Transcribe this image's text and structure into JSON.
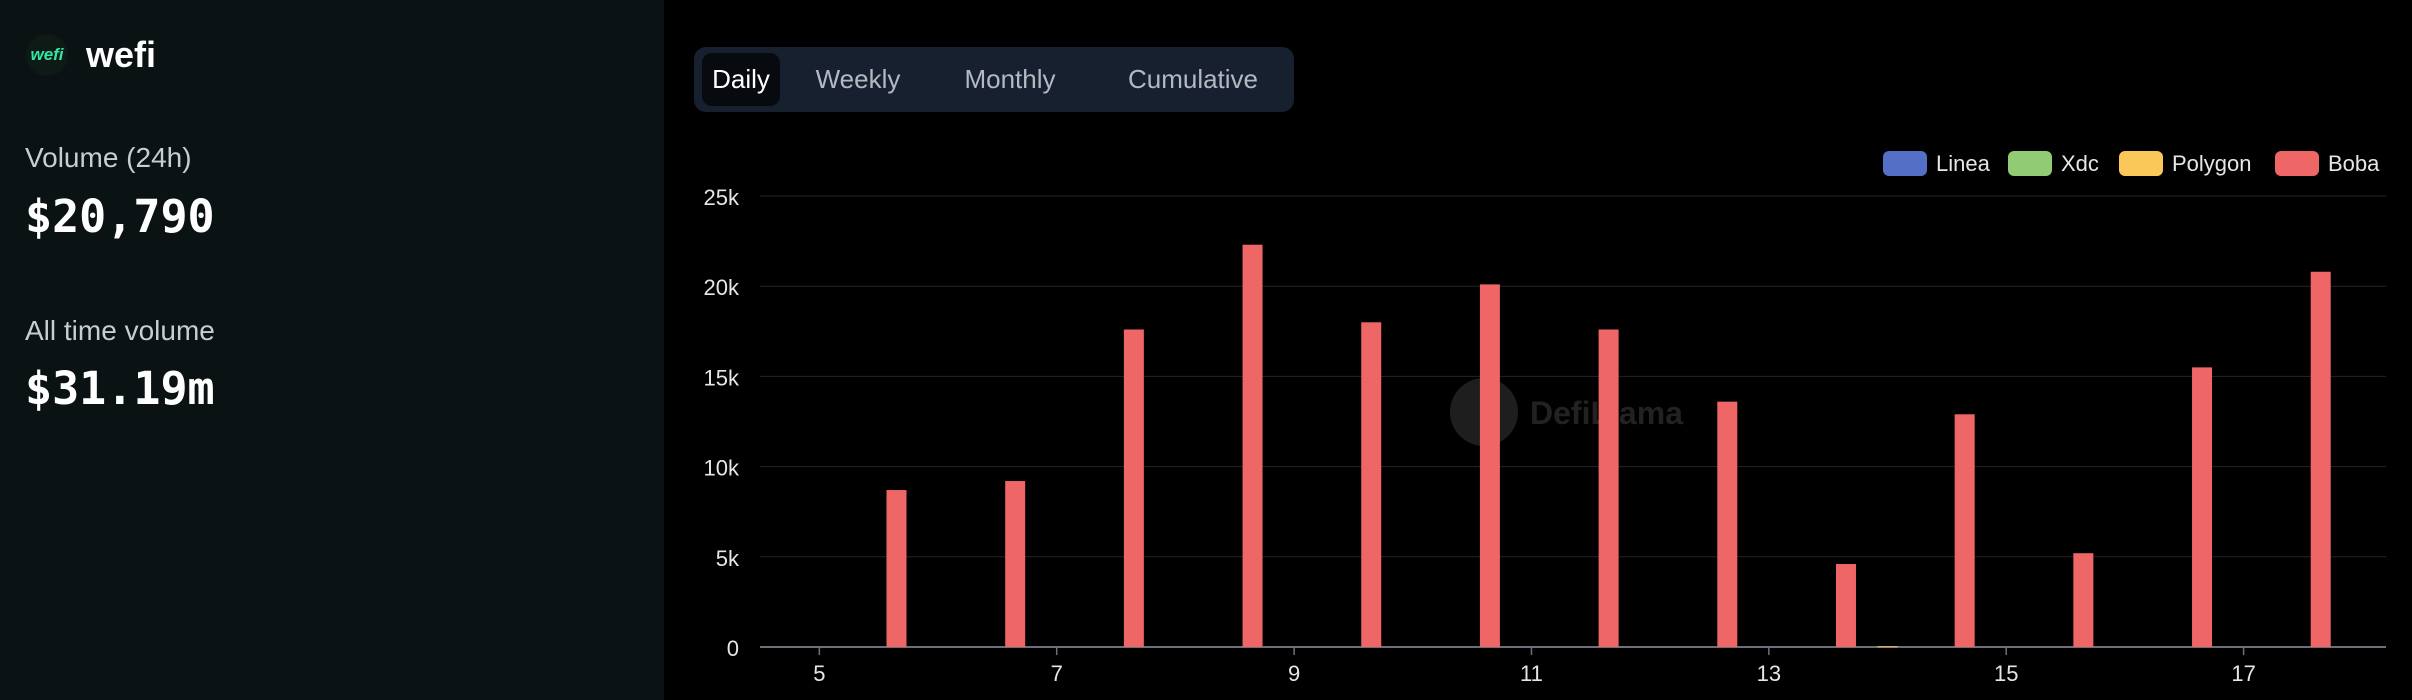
{
  "app": {
    "logo_text": "wefi",
    "name": "wefi"
  },
  "stats": {
    "volume_24h_label": "Volume (24h)",
    "volume_24h_value": "$20,790",
    "all_time_label": "All time volume",
    "all_time_value": "$31.19m"
  },
  "tabs": [
    {
      "label": "Daily",
      "active": true
    },
    {
      "label": "Weekly",
      "active": false
    },
    {
      "label": "Monthly",
      "active": false
    },
    {
      "label": "Cumulative",
      "active": false
    }
  ],
  "watermark": "DefiLlama",
  "chart_data": {
    "type": "bar",
    "stacked": true,
    "grid": true,
    "legend_position": "top-right",
    "x_ticks": [
      5,
      7,
      9,
      11,
      13,
      15,
      17
    ],
    "y_ticks": [
      "0",
      "5k",
      "10k",
      "15k",
      "20k",
      "25k"
    ],
    "ylim": [
      0,
      25000
    ],
    "xlim": [
      4.5,
      18.2
    ],
    "series": [
      {
        "name": "Linea",
        "color": "#5470c6",
        "points": []
      },
      {
        "name": "Xdc",
        "color": "#91cc75",
        "points": []
      },
      {
        "name": "Polygon",
        "color": "#fac858",
        "points": [
          {
            "x": 14.0,
            "y": 40
          }
        ]
      },
      {
        "name": "Boba",
        "color": "#ee6666",
        "points": [
          {
            "x": 5.65,
            "y": 8700
          },
          {
            "x": 6.65,
            "y": 9200
          },
          {
            "x": 7.65,
            "y": 17600
          },
          {
            "x": 8.65,
            "y": 22300
          },
          {
            "x": 9.65,
            "y": 18000
          },
          {
            "x": 10.65,
            "y": 20100
          },
          {
            "x": 11.65,
            "y": 17600
          },
          {
            "x": 12.65,
            "y": 13600
          },
          {
            "x": 13.65,
            "y": 4600
          },
          {
            "x": 14.65,
            "y": 12900
          },
          {
            "x": 15.65,
            "y": 5200
          },
          {
            "x": 16.65,
            "y": 15500
          },
          {
            "x": 17.65,
            "y": 20800
          }
        ]
      }
    ]
  }
}
